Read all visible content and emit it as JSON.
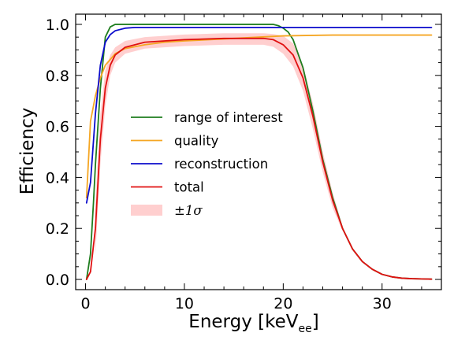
{
  "chart_data": {
    "type": "line",
    "xlabel": "Energy [keV",
    "xlabel_subscript": "ee",
    "xlabel_suffix": "]",
    "ylabel": "Efficiency",
    "xlim": [
      -1,
      36
    ],
    "ylim": [
      -0.04,
      1.04
    ],
    "x_ticks": [
      0,
      10,
      20,
      30
    ],
    "x_tick_labels": [
      "0",
      "10",
      "20",
      "30"
    ],
    "y_ticks": [
      0.0,
      0.2,
      0.4,
      0.6,
      0.8,
      1.0
    ],
    "y_tick_labels": [
      "0.0",
      "0.2",
      "0.4",
      "0.6",
      "0.8",
      "1.0"
    ],
    "grid": false,
    "legend_position": "center-left",
    "series": [
      {
        "name": "range of interest",
        "color": "#1e7d1e",
        "x": [
          0.1,
          0.5,
          0.8,
          1.0,
          1.5,
          2.0,
          2.5,
          3.0,
          4.0,
          6.0,
          10.0,
          14.0,
          18.0,
          19.0,
          19.5,
          20.0,
          20.5,
          21.0,
          22.0,
          23.0,
          24.0,
          25.0,
          26.0,
          27.0,
          28.0,
          29.0,
          30.0,
          31.0,
          32.0,
          33.0,
          34.0,
          35.0
        ],
        "y": [
          0.0,
          0.1,
          0.3,
          0.45,
          0.75,
          0.95,
          0.99,
          1.0,
          1.0,
          1.0,
          1.0,
          1.0,
          1.0,
          1.0,
          0.995,
          0.985,
          0.97,
          0.94,
          0.83,
          0.66,
          0.47,
          0.32,
          0.2,
          0.12,
          0.07,
          0.04,
          0.02,
          0.01,
          0.005,
          0.003,
          0.002,
          0.001
        ]
      },
      {
        "name": "quality",
        "color": "#f5a623",
        "x": [
          0.1,
          0.5,
          1.0,
          1.5,
          2.0,
          3.0,
          4.0,
          6.0,
          8.0,
          10.0,
          15.0,
          20.0,
          25.0,
          30.0,
          35.0
        ],
        "y": [
          0.32,
          0.62,
          0.72,
          0.79,
          0.84,
          0.885,
          0.905,
          0.92,
          0.93,
          0.935,
          0.945,
          0.955,
          0.958,
          0.958,
          0.958
        ]
      },
      {
        "name": "reconstruction",
        "color": "#0b0bcc",
        "x": [
          0.1,
          0.5,
          1.0,
          1.5,
          2.0,
          2.5,
          3.0,
          4.0,
          5.0,
          6.0,
          10.0,
          20.0,
          30.0,
          35.0
        ],
        "y": [
          0.3,
          0.38,
          0.65,
          0.84,
          0.93,
          0.96,
          0.975,
          0.985,
          0.988,
          0.988,
          0.988,
          0.988,
          0.988,
          0.988
        ]
      },
      {
        "name": "total",
        "color": "#e01010",
        "x": [
          0.1,
          0.5,
          1.0,
          1.5,
          2.0,
          2.5,
          3.0,
          4.0,
          6.0,
          8.0,
          10.0,
          14.0,
          18.0,
          19.0,
          20.0,
          21.0,
          22.0,
          23.0,
          24.0,
          25.0,
          26.0,
          27.0,
          28.0,
          29.0,
          30.0,
          31.0,
          32.0,
          33.0,
          34.0,
          35.0
        ],
        "y": [
          0.0,
          0.03,
          0.2,
          0.55,
          0.75,
          0.84,
          0.88,
          0.91,
          0.93,
          0.935,
          0.94,
          0.945,
          0.945,
          0.94,
          0.92,
          0.88,
          0.79,
          0.64,
          0.46,
          0.31,
          0.2,
          0.12,
          0.07,
          0.04,
          0.02,
          0.01,
          0.005,
          0.003,
          0.002,
          0.001
        ]
      }
    ],
    "band": {
      "name": "±1σ",
      "color": "#ffcfcf",
      "x": [
        1.0,
        1.5,
        2.0,
        2.5,
        3.0,
        4.0,
        6.0,
        8.0,
        10.0,
        14.0,
        18.0,
        19.0,
        20.0,
        21.0,
        22.0,
        23.0,
        24.0,
        25.0,
        26.0
      ],
      "upper": [
        0.3,
        0.65,
        0.82,
        0.88,
        0.91,
        0.935,
        0.95,
        0.955,
        0.96,
        0.965,
        0.965,
        0.962,
        0.955,
        0.925,
        0.84,
        0.69,
        0.5,
        0.34,
        0.21
      ],
      "lower": [
        0.1,
        0.45,
        0.68,
        0.8,
        0.85,
        0.885,
        0.905,
        0.91,
        0.915,
        0.92,
        0.92,
        0.912,
        0.885,
        0.835,
        0.74,
        0.59,
        0.42,
        0.28,
        0.19
      ]
    }
  }
}
